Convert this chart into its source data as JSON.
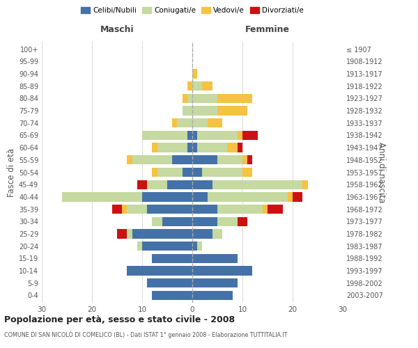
{
  "age_groups": [
    "0-4",
    "5-9",
    "10-14",
    "15-19",
    "20-24",
    "25-29",
    "30-34",
    "35-39",
    "40-44",
    "45-49",
    "50-54",
    "55-59",
    "60-64",
    "65-69",
    "70-74",
    "75-79",
    "80-84",
    "85-89",
    "90-94",
    "95-99",
    "100+"
  ],
  "birth_years": [
    "2003-2007",
    "1998-2002",
    "1993-1997",
    "1988-1992",
    "1983-1987",
    "1978-1982",
    "1973-1977",
    "1968-1972",
    "1963-1967",
    "1958-1962",
    "1953-1957",
    "1948-1952",
    "1943-1947",
    "1938-1942",
    "1933-1937",
    "1928-1932",
    "1923-1927",
    "1918-1922",
    "1913-1917",
    "1908-1912",
    "≤ 1907"
  ],
  "males": {
    "celibi": [
      8,
      9,
      13,
      8,
      10,
      12,
      6,
      9,
      10,
      5,
      2,
      4,
      1,
      1,
      0,
      0,
      0,
      0,
      0,
      0,
      0
    ],
    "coniugati": [
      0,
      0,
      0,
      0,
      1,
      1,
      2,
      4,
      16,
      4,
      5,
      8,
      6,
      9,
      3,
      2,
      1,
      0,
      0,
      0,
      0
    ],
    "vedovi": [
      0,
      0,
      0,
      0,
      0,
      0,
      0,
      1,
      0,
      0,
      1,
      1,
      1,
      0,
      1,
      0,
      1,
      1,
      0,
      0,
      0
    ],
    "divorziati": [
      0,
      0,
      0,
      0,
      0,
      2,
      0,
      2,
      0,
      2,
      0,
      0,
      0,
      0,
      0,
      0,
      0,
      0,
      0,
      0,
      0
    ]
  },
  "females": {
    "celibi": [
      8,
      9,
      12,
      9,
      1,
      4,
      5,
      5,
      3,
      4,
      2,
      5,
      1,
      1,
      0,
      0,
      0,
      0,
      0,
      0,
      0
    ],
    "coniugati": [
      0,
      0,
      0,
      0,
      1,
      2,
      4,
      9,
      16,
      18,
      8,
      5,
      6,
      8,
      3,
      5,
      5,
      2,
      0,
      0,
      0
    ],
    "vedovi": [
      0,
      0,
      0,
      0,
      0,
      0,
      0,
      1,
      1,
      1,
      2,
      1,
      2,
      1,
      3,
      6,
      7,
      2,
      1,
      0,
      0
    ],
    "divorziati": [
      0,
      0,
      0,
      0,
      0,
      0,
      2,
      3,
      2,
      0,
      0,
      1,
      1,
      3,
      0,
      0,
      0,
      0,
      0,
      0,
      0
    ]
  },
  "colors": {
    "celibi": "#4472A8",
    "coniugati": "#c5d9a0",
    "vedovi": "#f5c242",
    "divorziati": "#cc1111"
  },
  "xlim": 30,
  "title": "Popolazione per età, sesso e stato civile - 2008",
  "subtitle": "COMUNE DI SAN NICOLÒ DI COMELICO (BL) - Dati ISTAT 1° gennaio 2008 - Elaborazione TUTTITALIA.IT",
  "ylabel_left": "Fasce di età",
  "ylabel_right": "Anni di nascita",
  "maschi_label": "Maschi",
  "femmine_label": "Femmine",
  "legend_labels": [
    "Celibi/Nubili",
    "Coniugati/e",
    "Vedovi/e",
    "Divorziati/e"
  ],
  "background_color": "#ffffff",
  "grid_color": "#cccccc"
}
